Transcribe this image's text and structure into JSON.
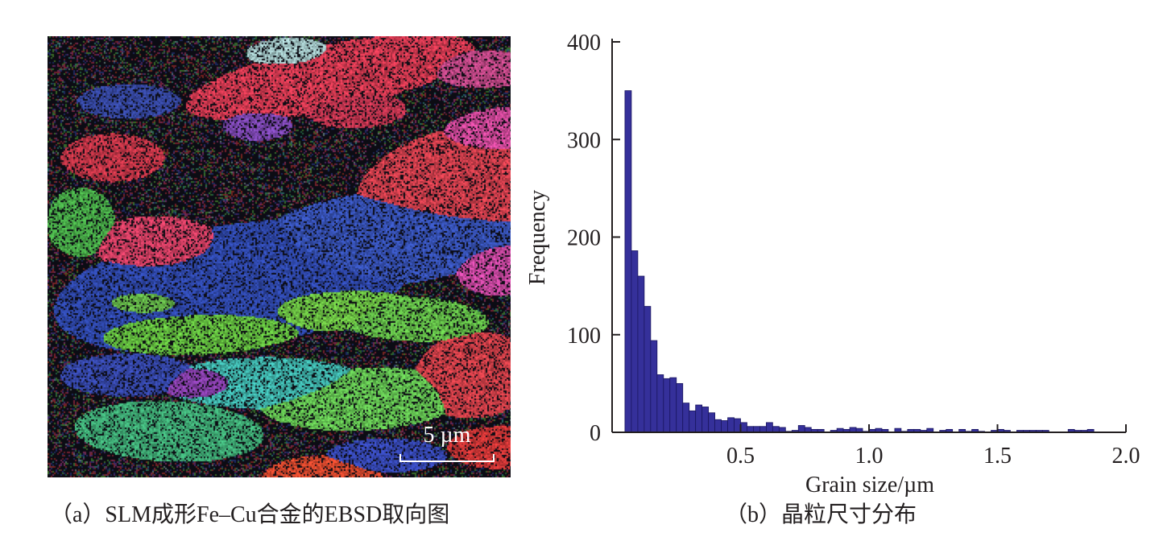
{
  "panel_a": {
    "scale_bar_label": "5 µm",
    "caption": "（a）SLM成形Fe–Cu合金的EBSD取向图"
  },
  "panel_b": {
    "caption": "（b）晶粒尺寸分布"
  },
  "colors": {
    "bar_fill": "#35309a",
    "bar_edge": "#1a1660",
    "axis": "#231f20"
  },
  "chart_data": {
    "type": "bar",
    "xlabel": "Grain size/µm",
    "ylabel": "Frequency",
    "xlim": [
      0,
      2.0
    ],
    "ylim": [
      0,
      400
    ],
    "xticks": [
      0.5,
      1.0,
      1.5,
      2.0
    ],
    "xtick_labels": [
      "0.5",
      "1.0",
      "1.5",
      "2.0"
    ],
    "yticks": [
      0,
      100,
      200,
      300,
      400
    ],
    "ytick_labels": [
      "0",
      "100",
      "200",
      "300",
      "400"
    ],
    "bin_width": 0.025,
    "x": [
      0.0625,
      0.0875,
      0.1125,
      0.1375,
      0.1625,
      0.1875,
      0.2125,
      0.2375,
      0.2625,
      0.2875,
      0.3125,
      0.3375,
      0.3625,
      0.3875,
      0.4125,
      0.4375,
      0.4625,
      0.4875,
      0.5125,
      0.5375,
      0.5625,
      0.5875,
      0.6125,
      0.6375,
      0.6625,
      0.6875,
      0.7125,
      0.7375,
      0.7625,
      0.7875,
      0.8125,
      0.8375,
      0.8625,
      0.8875,
      0.9125,
      0.9375,
      0.9625,
      0.9875,
      1.0125,
      1.0375,
      1.0625,
      1.0875,
      1.1125,
      1.1375,
      1.1625,
      1.1875,
      1.2125,
      1.2375,
      1.2625,
      1.2875,
      1.3125,
      1.3375,
      1.3625,
      1.3875,
      1.4125,
      1.4375,
      1.4625,
      1.4875,
      1.5125,
      1.5375,
      1.5625,
      1.5875,
      1.6125,
      1.6375,
      1.6625,
      1.6875,
      1.7125,
      1.7375,
      1.7625,
      1.7875,
      1.8125,
      1.8375,
      1.8625,
      1.8875,
      1.9125,
      1.9375
    ],
    "values": [
      350,
      186,
      160,
      129,
      94,
      59,
      55,
      56,
      50,
      30,
      22,
      28,
      26,
      20,
      13,
      12,
      15,
      14,
      10,
      6,
      6,
      6,
      10,
      6,
      5,
      1,
      2,
      7,
      5,
      3,
      3,
      0,
      2,
      4,
      3,
      5,
      4,
      1,
      3,
      4,
      3,
      0,
      4,
      1,
      3,
      3,
      2,
      4,
      0,
      2,
      3,
      0,
      3,
      1,
      3,
      1,
      0,
      2,
      3,
      2,
      0,
      2,
      2,
      2,
      2,
      2,
      0,
      0,
      0,
      3,
      2,
      2,
      3,
      0,
      0,
      0
    ]
  }
}
